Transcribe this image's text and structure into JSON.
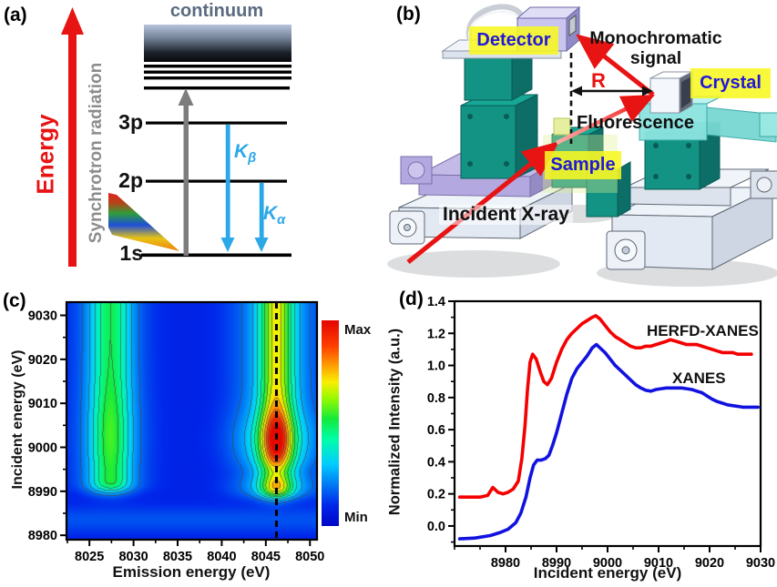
{
  "colors": {
    "accent_red": "#e81313",
    "cyan_arrow": "#2ba8e8",
    "gray_arrow": "#7d7d7d",
    "label_yellow": "#f7f722",
    "label_blue_text": "#2118d8",
    "continuum_text": "#5a6b80",
    "teal": "#129383",
    "lavender": "#b3a9e0",
    "herfd_red": "#f40000",
    "xanes_blue": "#1212e0"
  },
  "panels": {
    "a": {
      "label": "(a)",
      "energy_axis_label": "Energy",
      "synchrotron_label": "Synchrotron radiation",
      "continuum_label": "continuum",
      "levels": {
        "l3p": "3p",
        "l2p": "2p",
        "l1s": "1s"
      },
      "transitions": [
        {
          "main": "K",
          "sub": "β"
        },
        {
          "main": "K",
          "sub": "α"
        }
      ]
    },
    "b": {
      "label": "(b)",
      "labels": {
        "detector": "Detector",
        "monochromatic": "Monochromatic\nsignal",
        "radius": "R",
        "crystal": "Crystal",
        "fluorescence": "Fluorescence",
        "sample": "Sample",
        "incident": "Incident X-ray"
      }
    },
    "c": {
      "label": "(c)"
    },
    "d": {
      "label": "(d)"
    }
  },
  "chart_data": [
    {
      "type": "heatmap",
      "panel": "c",
      "xlabel": "Emission energy (eV)",
      "ylabel": "Incident energy (eV)",
      "xlim": [
        8022.4,
        8050.8
      ],
      "ylim": [
        8979,
        9033
      ],
      "xticks": [
        8025,
        8030,
        8035,
        8040,
        8045,
        8050
      ],
      "yticks": [
        8980,
        8990,
        9000,
        9010,
        9020,
        9030
      ],
      "xminor": 2.5,
      "yminor": 5,
      "colorbar": {
        "max_label": "Max",
        "min_label": "Min"
      },
      "dashed_line_x": 8046.2,
      "floor": 0.08,
      "bottom_band": {
        "yc": 8983.5,
        "sy": 2.3,
        "a": 0.07
      },
      "bands": [
        {
          "xc": 8027.4,
          "sx1": 1.6,
          "w1": 0.75,
          "sx2": 3.2,
          "w2": 0.25,
          "rise_y": 8989.9,
          "rise_w": 0.8,
          "base": 0.42,
          "hot": {
            "yc": 9003,
            "sy": 7.0,
            "a": 0.06
          },
          "bump": {
            "yc": 8991.3,
            "sy": 1.5,
            "a": 0.04
          },
          "dip": {
            "yc": 8995,
            "sy": 1.5,
            "a": 0.0
          }
        },
        {
          "xc": 8046.2,
          "sx1": 1.3,
          "w1": 0.7,
          "sx2": 3.4,
          "w2": 0.3,
          "rise_y": 8988.6,
          "rise_w": 0.7,
          "base": 0.62,
          "hot": {
            "yc": 9002,
            "sy": 4.4,
            "a": 0.38
          },
          "bump": {
            "yc": 8991.0,
            "sy": 1.2,
            "a": 0.08
          },
          "dip": {
            "yc": 8994.8,
            "sy": 1.5,
            "a": 0.1
          }
        }
      ],
      "contour_levels": [
        0.18,
        0.26,
        0.34,
        0.42,
        0.5,
        0.58,
        0.66,
        0.74,
        0.82,
        0.9
      ],
      "colormap": [
        [
          0.0,
          0,
          8,
          200
        ],
        [
          0.1,
          0,
          40,
          235
        ],
        [
          0.3,
          0,
          205,
          255
        ],
        [
          0.42,
          0,
          255,
          170
        ],
        [
          0.52,
          20,
          235,
          60
        ],
        [
          0.62,
          150,
          250,
          0
        ],
        [
          0.7,
          250,
          240,
          0
        ],
        [
          0.78,
          255,
          160,
          0
        ],
        [
          0.88,
          255,
          60,
          0
        ],
        [
          1.0,
          228,
          8,
          0
        ]
      ]
    },
    {
      "type": "line",
      "panel": "d",
      "xlabel": "Incident energy (eV)",
      "ylabel": "Normalized Intensity (a.u.)",
      "xlim": [
        8970,
        9030
      ],
      "ylim": [
        -0.125,
        1.4
      ],
      "xticks": [
        8980,
        8990,
        9000,
        9010,
        9020,
        9030
      ],
      "yticks": [
        0.0,
        0.2,
        0.4,
        0.6,
        0.8,
        1.0,
        1.2,
        1.4
      ],
      "yticklabels": [
        "0.0",
        "0.2",
        "0.4",
        "0.6",
        "0.8",
        "1.0",
        "1.2",
        "1.4"
      ],
      "xminor": 5,
      "yminor": 0.1,
      "series": [
        {
          "name": "HERFD-XANES",
          "color": "#f40000",
          "x": [
            8971,
            8973,
            8975,
            8976.5,
            8977.5,
            8978.5,
            8979.5,
            8980.5,
            8981.5,
            8982.5,
            8983.2,
            8983.8,
            8984.3,
            8984.8,
            8985.3,
            8986,
            8986.8,
            8987.5,
            8988.2,
            8989,
            8990,
            8991,
            8992,
            8993,
            8994,
            8995,
            8996,
            8997,
            8997.7,
            8998.5,
            8999.5,
            9000.5,
            9001.5,
            9002.5,
            9003.5,
            9004.5,
            9005.5,
            9006.5,
            9007.5,
            9008.5,
            9009.5,
            9010.5,
            9011.5,
            9012.3,
            9013.5,
            9014.5,
            9015.5,
            9016.5,
            9017.5,
            9018.5,
            9019.5,
            9020.5,
            9021.5,
            9022.5,
            9023.5,
            9024.5,
            9025.5,
            9026.5,
            9027.5,
            9028.2
          ],
          "y": [
            0.18,
            0.18,
            0.18,
            0.19,
            0.24,
            0.21,
            0.2,
            0.21,
            0.23,
            0.28,
            0.42,
            0.62,
            0.85,
            1.02,
            1.07,
            1.04,
            0.96,
            0.9,
            0.88,
            0.92,
            1.02,
            1.1,
            1.16,
            1.2,
            1.23,
            1.26,
            1.28,
            1.3,
            1.31,
            1.29,
            1.25,
            1.21,
            1.18,
            1.16,
            1.14,
            1.12,
            1.11,
            1.11,
            1.12,
            1.12,
            1.13,
            1.14,
            1.15,
            1.16,
            1.15,
            1.14,
            1.13,
            1.13,
            1.13,
            1.12,
            1.11,
            1.1,
            1.09,
            1.08,
            1.08,
            1.08,
            1.07,
            1.07,
            1.07,
            1.07
          ]
        },
        {
          "name": "XANES",
          "color": "#1212e0",
          "x": [
            8971,
            8974,
            8977,
            8979,
            8980.5,
            8982,
            8983,
            8984,
            8984.8,
            8985.5,
            8986.2,
            8987,
            8987.8,
            8988.5,
            8989.2,
            8990,
            8991,
            8992,
            8993,
            8994,
            8995,
            8996,
            8997,
            8997.8,
            8998.5,
            8999.5,
            9000.5,
            9001.5,
            9002.5,
            9003.5,
            9004.5,
            9005.5,
            9006.5,
            9007.5,
            9008.5,
            9009.5,
            9010.5,
            9011.5,
            9012.5,
            9013.5,
            9014.5,
            9015.5,
            9016.5,
            9017.5,
            9018.5,
            9019.5,
            9020.5,
            9021.5,
            9022.5,
            9023.5,
            9024.5,
            9025.5,
            9026.5,
            9027.5,
            9028.5,
            9029.5
          ],
          "y": [
            -0.08,
            -0.075,
            -0.06,
            -0.04,
            -0.02,
            0.02,
            0.08,
            0.18,
            0.3,
            0.38,
            0.41,
            0.41,
            0.42,
            0.44,
            0.5,
            0.58,
            0.7,
            0.82,
            0.92,
            0.98,
            1.02,
            1.06,
            1.11,
            1.13,
            1.11,
            1.08,
            1.04,
            1.0,
            0.97,
            0.94,
            0.91,
            0.88,
            0.86,
            0.845,
            0.84,
            0.85,
            0.855,
            0.86,
            0.86,
            0.86,
            0.86,
            0.855,
            0.85,
            0.84,
            0.83,
            0.81,
            0.79,
            0.775,
            0.765,
            0.755,
            0.75,
            0.745,
            0.74,
            0.74,
            0.74,
            0.74
          ]
        }
      ]
    }
  ]
}
